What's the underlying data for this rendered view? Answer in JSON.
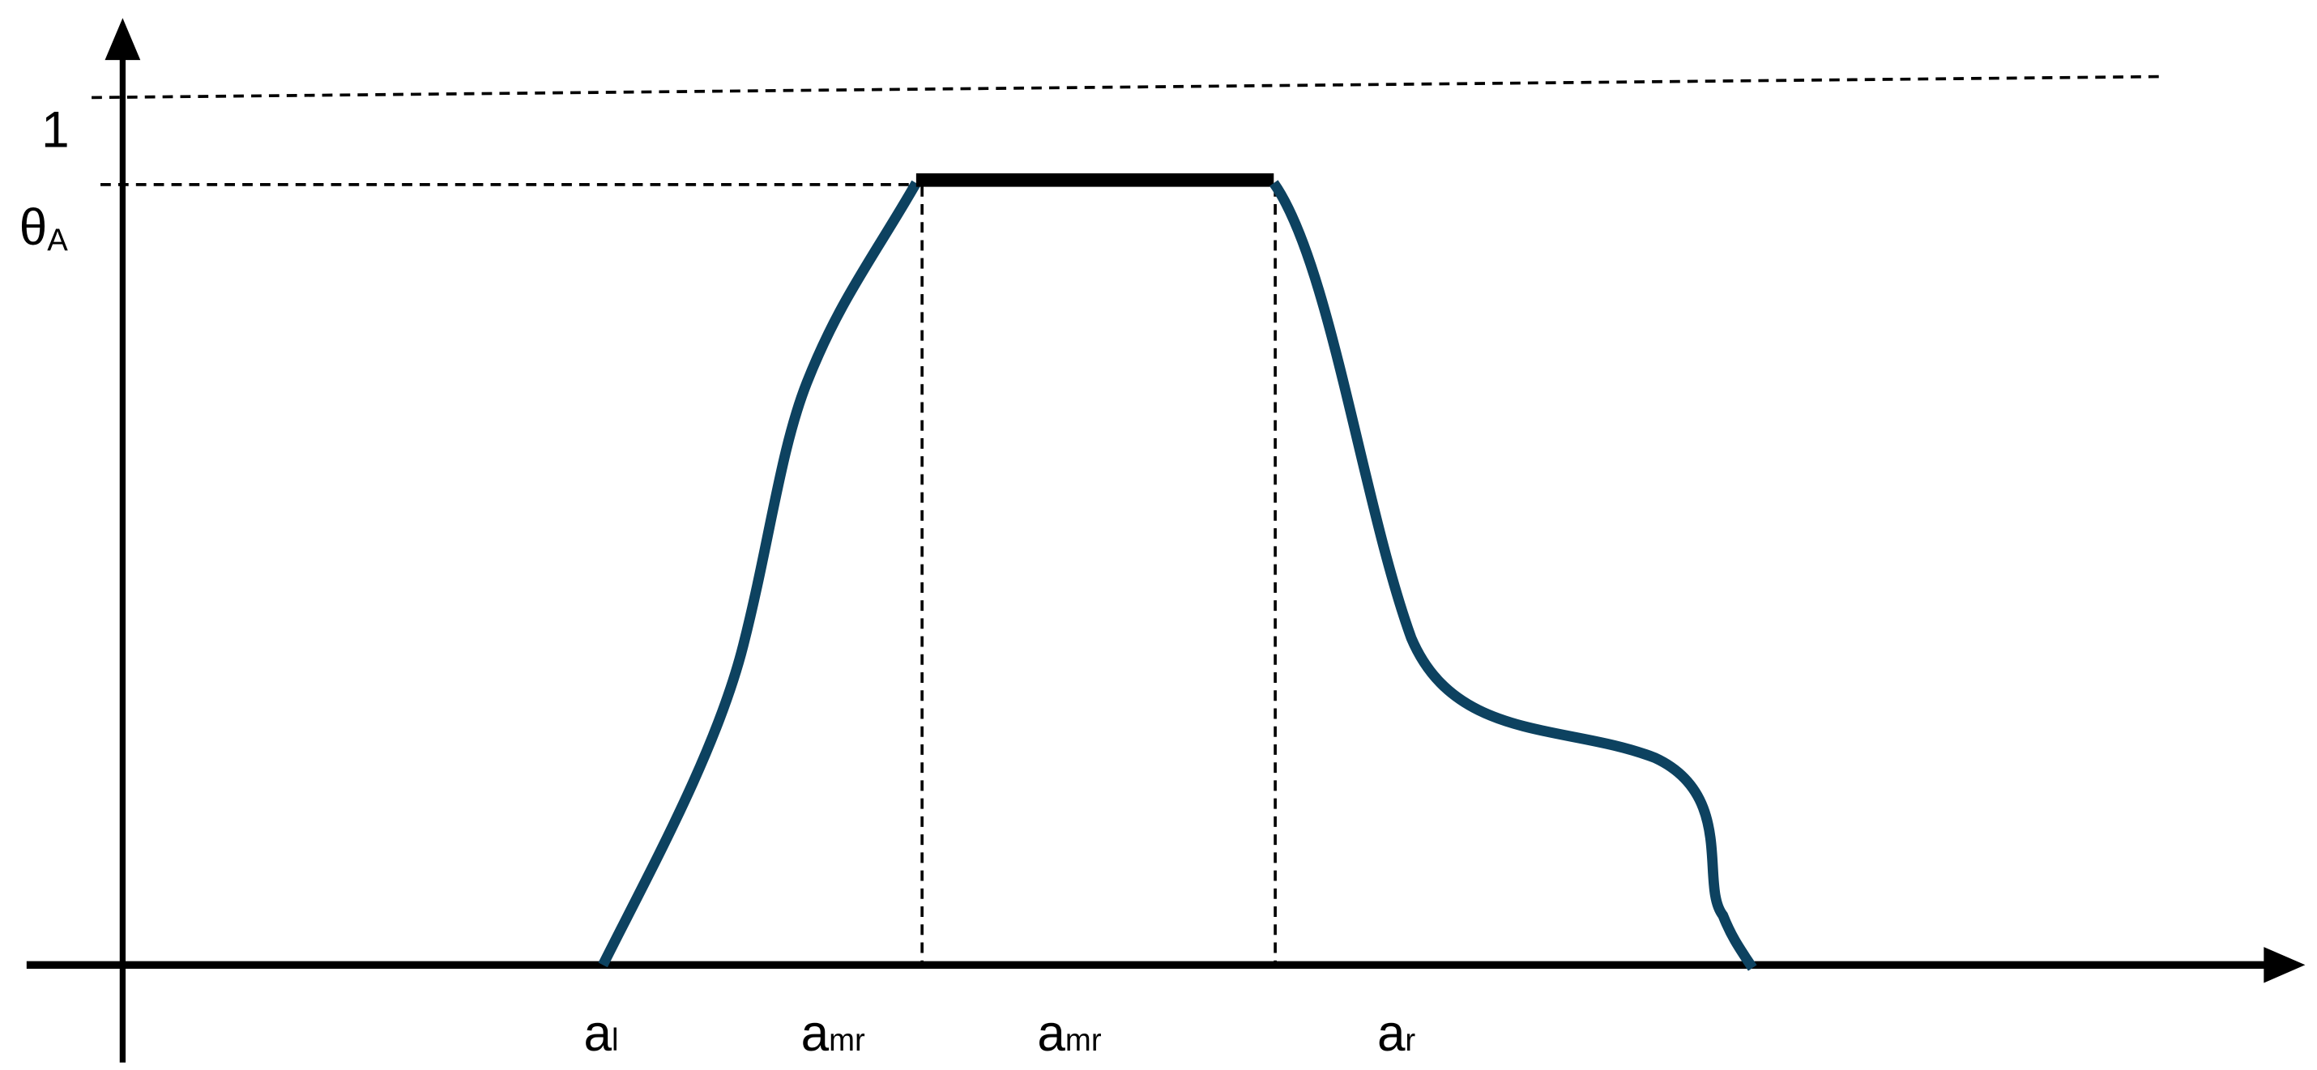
{
  "y_labels": [
    {
      "main": "1"
    },
    {
      "main": "θ",
      "sub": "A"
    }
  ],
  "x_labels": [
    {
      "main": "a",
      "sub": "l"
    },
    {
      "main": "a",
      "sub": "mr"
    },
    {
      "main": "a",
      "sub": "mr"
    },
    {
      "main": "a",
      "sub": "r"
    }
  ]
}
